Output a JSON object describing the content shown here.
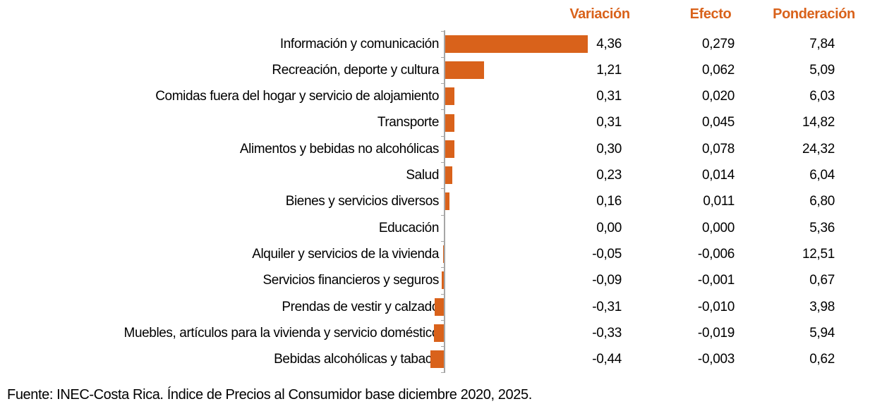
{
  "colors": {
    "accent": "#D9621B",
    "axis": "#A6A6A6",
    "text": "#000000",
    "background": "#ffffff"
  },
  "header": {
    "variacion": "Variación",
    "efecto": "Efecto",
    "ponderacion": "Ponderación"
  },
  "footer": {
    "source": "Fuente: INEC-Costa Rica. Índice de Precios al Consumidor base diciembre 2020, 2025."
  },
  "chart_data": {
    "type": "bar",
    "orientation": "horizontal",
    "title": "",
    "xlabel": "",
    "ylabel": "",
    "grid": false,
    "xlim": [
      -0.6,
      4.6
    ],
    "categories": [
      "Información y comunicación",
      "Recreación, deporte y cultura",
      "Comidas fuera del hogar y servicio de alojamiento",
      "Transporte",
      "Alimentos y bebidas no alcohólicas",
      "Salud",
      "Bienes y servicios diversos",
      "Educación",
      "Alquiler y servicios de la vivienda",
      "Servicios financieros y seguros",
      "Prendas de vestir y calzado",
      "Muebles, artículos para la vivienda y servicio doméstico",
      "Bebidas alcohólicas y tabaco"
    ],
    "series": [
      {
        "name": "Variación",
        "values": [
          4.36,
          1.21,
          0.31,
          0.31,
          0.3,
          0.23,
          0.16,
          0.0,
          -0.05,
          -0.09,
          -0.31,
          -0.33,
          -0.44
        ]
      },
      {
        "name": "Efecto",
        "values": [
          0.279,
          0.062,
          0.02,
          0.045,
          0.078,
          0.014,
          0.011,
          0.0,
          -0.006,
          -0.001,
          -0.01,
          -0.019,
          -0.003
        ]
      },
      {
        "name": "Ponderación",
        "values": [
          7.84,
          5.09,
          6.03,
          14.82,
          24.32,
          6.04,
          6.8,
          5.36,
          12.51,
          0.67,
          3.98,
          5.94,
          0.62
        ]
      }
    ],
    "value_labels": {
      "variacion": [
        "4,36",
        "1,21",
        "0,31",
        "0,31",
        "0,30",
        "0,23",
        "0,16",
        "0,00",
        "-0,05",
        "-0,09",
        "-0,31",
        "-0,33",
        "-0,44"
      ],
      "efecto": [
        "0,279",
        "0,062",
        "0,020",
        "0,045",
        "0,078",
        "0,014",
        "0,011",
        "0,000",
        "-0,006",
        "-0,001",
        "-0,010",
        "-0,019",
        "-0,003"
      ],
      "ponderacion": [
        "7,84",
        "5,09",
        "6,03",
        "14,82",
        "24,32",
        "6,04",
        "6,80",
        "5,36",
        "12,51",
        "0,67",
        "3,98",
        "5,94",
        "0,62"
      ]
    },
    "bar_color": "#D9621B",
    "legend_position": "none"
  }
}
